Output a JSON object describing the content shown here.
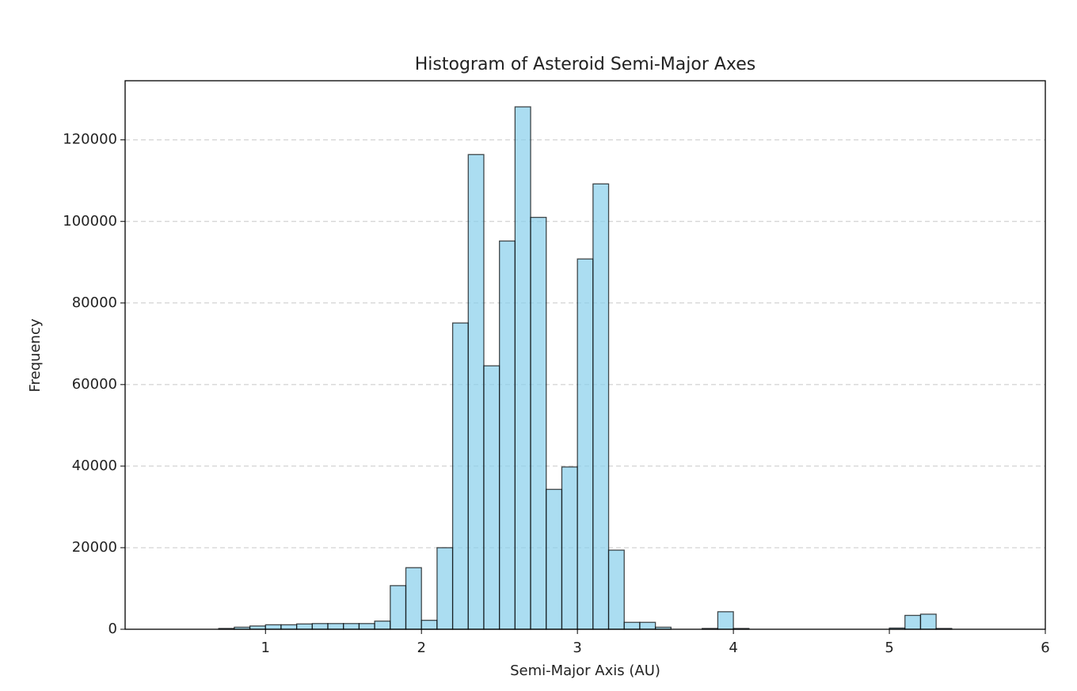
{
  "chart_data": {
    "type": "histogram",
    "title": "Histogram of Asteroid Semi-Major Axes",
    "x_label": "Semi-Major Axis (AU)",
    "y_label": "Frequency",
    "bins": [
      0.1,
      0.2,
      0.3,
      0.4,
      0.5,
      0.6,
      0.7,
      0.8,
      0.9,
      1.0,
      1.1,
      1.2,
      1.3,
      1.4,
      1.5,
      1.6,
      1.7,
      1.8,
      1.9,
      2.0,
      2.1,
      2.2,
      2.3,
      2.4,
      2.5,
      2.6,
      2.7,
      2.8,
      2.9,
      3.0,
      3.1,
      3.2,
      3.3,
      3.4,
      3.5,
      3.6,
      3.7,
      3.8,
      3.9,
      4.0,
      4.1,
      4.2,
      4.3,
      4.4,
      4.5,
      4.6,
      4.7,
      4.8,
      4.9,
      5.0,
      5.1,
      5.2,
      5.3,
      5.4,
      5.5,
      5.6,
      5.7,
      5.8,
      5.9,
      6.0
    ],
    "values": [
      0,
      0,
      0,
      0,
      0,
      0,
      200,
      500,
      800,
      1100,
      1100,
      1300,
      1400,
      1400,
      1400,
      1400,
      2000,
      10700,
      15100,
      2200,
      20000,
      75100,
      116400,
      64600,
      95200,
      128100,
      101000,
      34300,
      39800,
      90800,
      109200,
      19400,
      1700,
      1700,
      500,
      0,
      0,
      200,
      4300,
      200,
      0,
      0,
      0,
      0,
      0,
      0,
      0,
      0,
      0,
      300,
      3400,
      3700,
      200,
      0,
      0,
      0,
      0,
      0,
      0
    ],
    "color": "#87ceeb",
    "edgecolor": "#000000",
    "xlim": [
      0.1,
      6
    ],
    "ylim": [
      0,
      134500
    ],
    "xticks": [
      1,
      2,
      3,
      4,
      5,
      6
    ],
    "yticks": [
      0,
      20000,
      40000,
      60000,
      80000,
      100000,
      120000
    ],
    "grid": true
  }
}
